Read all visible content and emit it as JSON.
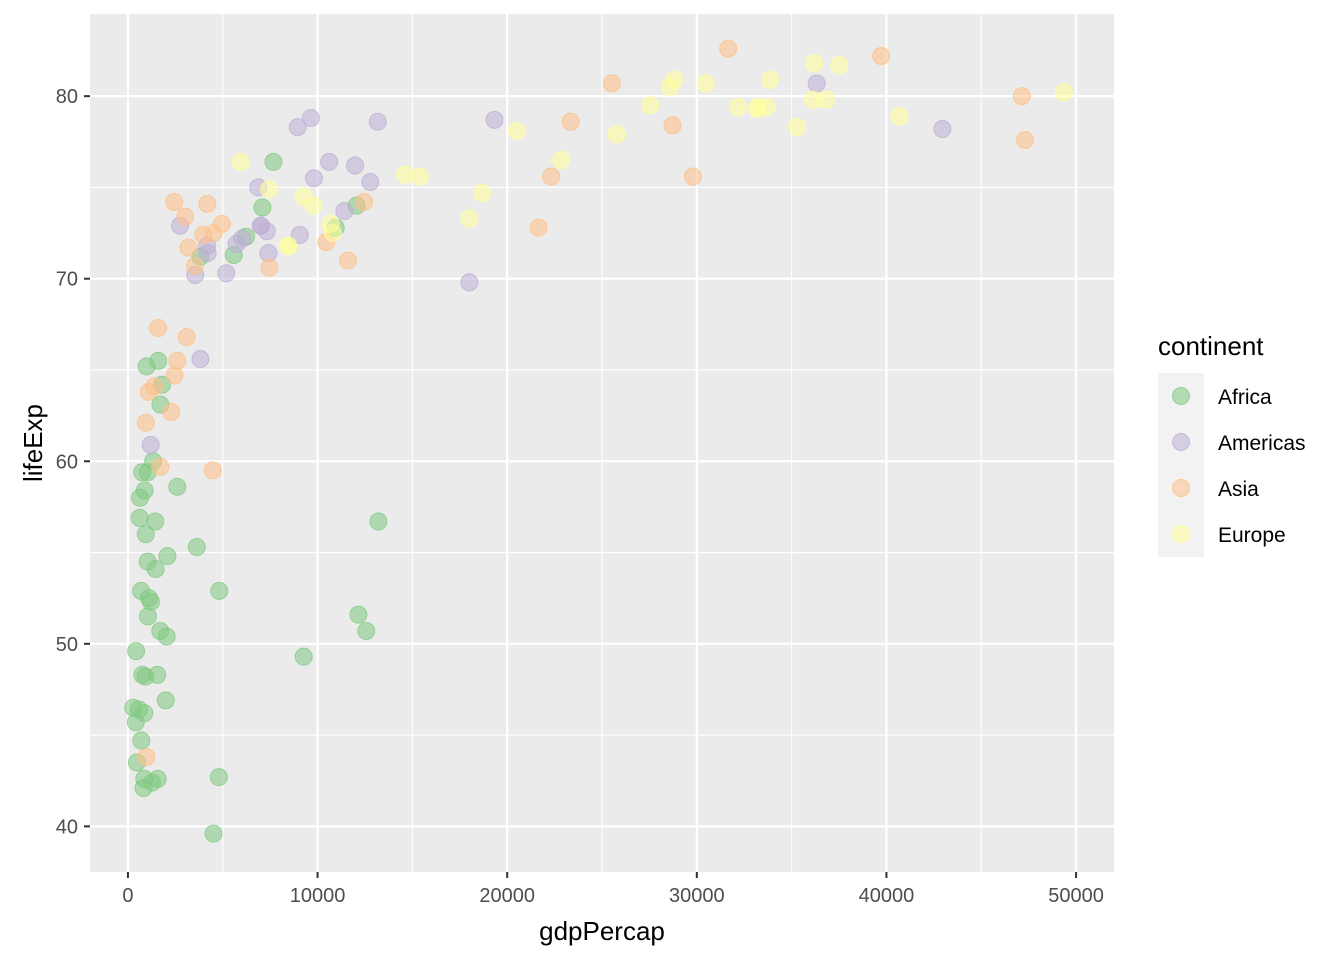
{
  "chart_data": {
    "type": "scatter",
    "xlabel": "gdpPercap",
    "ylabel": "lifeExp",
    "xlim": [
      -2000,
      52000
    ],
    "ylim": [
      37.5,
      84.5
    ],
    "x_ticks": [
      0,
      10000,
      20000,
      30000,
      40000,
      50000
    ],
    "x_tick_labels": [
      "0",
      "10000",
      "20000",
      "30000",
      "40000",
      "50000"
    ],
    "y_ticks": [
      40,
      50,
      60,
      70,
      80
    ],
    "y_tick_labels": [
      "40",
      "50",
      "60",
      "70",
      "80"
    ],
    "grid": true,
    "point_opacity": 0.55,
    "legend": {
      "title": "continent",
      "placement": "right",
      "entries": [
        "Africa",
        "Americas",
        "Asia",
        "Europe"
      ]
    },
    "series": [
      {
        "name": "Africa",
        "color": "#7fc97f",
        "points": [
          [
            6223,
            72.3
          ],
          [
            4797,
            42.7
          ],
          [
            1441,
            56.7
          ],
          [
            12570,
            50.7
          ],
          [
            1217,
            52.3
          ],
          [
            430,
            49.6
          ],
          [
            2042,
            50.4
          ],
          [
            706,
            44.7
          ],
          [
            1704,
            50.7
          ],
          [
            986,
            65.2
          ],
          [
            277,
            46.5
          ],
          [
            3633,
            55.3
          ],
          [
            1545,
            48.3
          ],
          [
            2082,
            54.8
          ],
          [
            5581,
            71.3
          ],
          [
            12154,
            51.6
          ],
          [
            641,
            58.0
          ],
          [
            690,
            52.9
          ],
          [
            13206,
            56.7
          ],
          [
            753,
            59.4
          ],
          [
            1328,
            60.0
          ],
          [
            943,
            56.0
          ],
          [
            580,
            46.4
          ],
          [
            1464,
            54.1
          ],
          [
            1569,
            42.6
          ],
          [
            415,
            45.7
          ],
          [
            12057,
            74.0
          ],
          [
            1044,
            59.4
          ],
          [
            759,
            48.3
          ],
          [
            1042,
            54.5
          ],
          [
            1803,
            64.2
          ],
          [
            10957,
            72.8
          ],
          [
            3820,
            71.2
          ],
          [
            824,
            42.1
          ],
          [
            4811,
            52.9
          ],
          [
            620,
            56.9
          ],
          [
            1998,
            46.9
          ],
          [
            863,
            46.2
          ],
          [
            1598,
            65.5
          ],
          [
            1712,
            63.1
          ],
          [
            862,
            42.6
          ],
          [
            926,
            48.2
          ],
          [
            9270,
            49.3
          ],
          [
            2602,
            58.6
          ],
          [
            4513,
            39.6
          ],
          [
            1107,
            52.5
          ],
          [
            883,
            58.4
          ],
          [
            7093,
            73.9
          ],
          [
            1056,
            51.5
          ],
          [
            1271,
            42.4
          ],
          [
            470,
            43.5
          ],
          [
            7674,
            76.4
          ]
        ]
      },
      {
        "name": "Americas",
        "color": "#beaed4",
        "points": [
          [
            12779,
            75.3
          ],
          [
            3822,
            65.6
          ],
          [
            9066,
            72.4
          ],
          [
            36319,
            80.7
          ],
          [
            13172,
            78.6
          ],
          [
            7007,
            72.9
          ],
          [
            9645,
            78.8
          ],
          [
            8948,
            78.3
          ],
          [
            6025,
            72.2
          ],
          [
            6873,
            75.0
          ],
          [
            5728,
            71.9
          ],
          [
            5186,
            70.3
          ],
          [
            4202,
            71.4
          ],
          [
            11978,
            76.2
          ],
          [
            1202,
            60.9
          ],
          [
            3548,
            70.2
          ],
          [
            7321,
            72.6
          ],
          [
            9809,
            75.5
          ],
          [
            7408,
            71.4
          ],
          [
            4173,
            71.8
          ],
          [
            7006,
            72.9
          ],
          [
            18009,
            69.8
          ],
          [
            42952,
            78.2
          ],
          [
            10611,
            76.4
          ],
          [
            11416,
            73.7
          ],
          [
            2749,
            72.9
          ],
          [
            19329,
            78.7
          ]
        ]
      },
      {
        "name": "Asia",
        "color": "#fdc086",
        "points": [
          [
            975,
            43.8
          ],
          [
            29796,
            75.6
          ],
          [
            1391,
            64.1
          ],
          [
            1713,
            59.7
          ],
          [
            4959,
            73.0
          ],
          [
            39725,
            82.2
          ],
          [
            2452,
            64.7
          ],
          [
            3541,
            70.7
          ],
          [
            11606,
            71.0
          ],
          [
            4471,
            59.5
          ],
          [
            25523,
            80.7
          ],
          [
            31656,
            82.6
          ],
          [
            4519,
            72.5
          ],
          [
            1593,
            67.3
          ],
          [
            23348,
            78.6
          ],
          [
            47307,
            77.6
          ],
          [
            10461,
            72.0
          ],
          [
            12452,
            74.2
          ],
          [
            3096,
            66.8
          ],
          [
            944,
            62.1
          ],
          [
            1091,
            63.8
          ],
          [
            22316,
            75.6
          ],
          [
            2606,
            65.5
          ],
          [
            3190,
            71.7
          ],
          [
            21655,
            72.8
          ],
          [
            47143,
            80.0
          ],
          [
            3970,
            72.4
          ],
          [
            4185,
            74.1
          ],
          [
            28718,
            78.4
          ],
          [
            7458,
            70.6
          ],
          [
            2442,
            74.2
          ],
          [
            3026,
            73.4
          ],
          [
            2281,
            62.7
          ]
        ]
      },
      {
        "name": "Europe",
        "color": "#ffff99",
        "points": [
          [
            5937,
            76.4
          ],
          [
            36126,
            79.8
          ],
          [
            33693,
            79.4
          ],
          [
            7446,
            74.9
          ],
          [
            10681,
            73.0
          ],
          [
            14619,
            75.7
          ],
          [
            22833,
            76.5
          ],
          [
            35278,
            78.3
          ],
          [
            33207,
            79.3
          ],
          [
            30470,
            80.7
          ],
          [
            32170,
            79.4
          ],
          [
            27538,
            79.5
          ],
          [
            18008,
            73.3
          ],
          [
            36181,
            81.8
          ],
          [
            40676,
            78.9
          ],
          [
            28570,
            80.5
          ],
          [
            9254,
            74.5
          ],
          [
            36798,
            79.8
          ],
          [
            49357,
            80.2
          ],
          [
            15390,
            75.6
          ],
          [
            20510,
            78.1
          ],
          [
            10808,
            72.5
          ],
          [
            9787,
            74.0
          ],
          [
            8458,
            71.8
          ],
          [
            18679,
            74.7
          ],
          [
            25768,
            77.9
          ],
          [
            28821,
            80.9
          ],
          [
            33860,
            80.9
          ],
          [
            37506,
            81.7
          ],
          [
            8458,
            71.8
          ],
          [
            33203,
            79.4
          ]
        ]
      }
    ]
  }
}
